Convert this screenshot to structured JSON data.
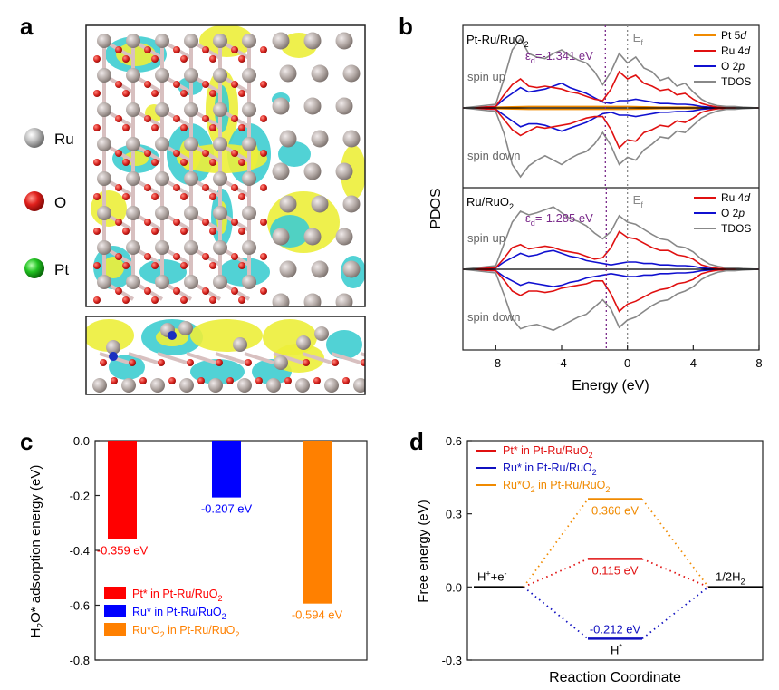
{
  "panel_letters": {
    "a": "a",
    "b": "b",
    "c": "c",
    "d": "d"
  },
  "panel_a": {
    "legend": [
      {
        "label": "Ru",
        "color": "#b5b5b5"
      },
      {
        "label": "O",
        "color": "#e0201c"
      },
      {
        "label": "Pt",
        "color": "#22c322"
      }
    ],
    "colors": {
      "bond": "#d8c0c0",
      "ru": "#b3a8a4",
      "o": "#d8231e",
      "yellow": "#ecee3a",
      "cyan": "#3ecdd0",
      "pt": "#1a2fc0"
    }
  },
  "chart_data": [
    {
      "id": "b",
      "type": "line",
      "title": "PDOS",
      "ylabel": "PDOS",
      "xlabel": "Energy (eV)",
      "xlim": [
        -10,
        8
      ],
      "xticks": [
        -8,
        -4,
        0,
        4,
        8
      ],
      "tick_labels": [
        "-8",
        "-4",
        "0",
        "4",
        "8"
      ],
      "ef_label": "E",
      "ef_sub": "f",
      "subplots": [
        {
          "name": "Pt-Ru/RuO",
          "name_sub": "2",
          "ed_label": "ε",
          "ed_sub": "d",
          "ed_value": "=-1.341 eV",
          "ed_x": -1.341,
          "spin_up": "spin up",
          "spin_down": "spin down",
          "legend": [
            {
              "label": "Pt 5",
              "italic": "d",
              "color": "#f08a00"
            },
            {
              "label": "Ru 4",
              "italic": "d",
              "color": "#e01010"
            },
            {
              "label": "O 2",
              "italic": "p",
              "color": "#1010d0"
            },
            {
              "label": "TDOS",
              "italic": "",
              "color": "#888888"
            }
          ],
          "series": [
            {
              "name": "TDOS",
              "color": "#888888",
              "x": [
                -10,
                -8,
                -7.5,
                -7,
                -6.5,
                -6,
                -5.5,
                -5,
                -4.5,
                -4,
                -3.5,
                -3,
                -2.5,
                -2,
                -1.5,
                -1,
                -0.5,
                0,
                0.5,
                1,
                1.5,
                2,
                2.5,
                3,
                3.5,
                4,
                4.5,
                5,
                5.5,
                6,
                6.5,
                7,
                8
              ],
              "up": [
                0,
                0.05,
                0.4,
                0.8,
                0.95,
                0.75,
                0.7,
                0.68,
                0.75,
                0.8,
                0.72,
                0.66,
                0.62,
                0.5,
                0.32,
                0.5,
                0.75,
                0.62,
                0.7,
                0.55,
                0.5,
                0.38,
                0.42,
                0.3,
                0.34,
                0.22,
                0.12,
                0.06,
                0.03,
                0.02,
                0.02,
                0.01,
                0
              ],
              "down": [
                0,
                0.05,
                0.35,
                0.78,
                0.95,
                0.8,
                0.72,
                0.66,
                0.72,
                0.78,
                0.7,
                0.64,
                0.6,
                0.5,
                0.34,
                0.52,
                0.78,
                0.68,
                0.72,
                0.58,
                0.5,
                0.4,
                0.42,
                0.32,
                0.34,
                0.24,
                0.14,
                0.08,
                0.04,
                0.02,
                0.02,
                0.01,
                0
              ]
            },
            {
              "name": "Ru 4d",
              "color": "#e01010",
              "x": [
                -10,
                -8,
                -7.5,
                -7,
                -6.5,
                -6,
                -5.5,
                -5,
                -4.5,
                -4,
                -3.5,
                -3,
                -2.5,
                -2,
                -1.5,
                -1,
                -0.5,
                0,
                0.5,
                1,
                1.5,
                2,
                2.5,
                3,
                3.5,
                4,
                4.5,
                5,
                5.5,
                6,
                6.5,
                7,
                8
              ],
              "up": [
                0,
                0.02,
                0.18,
                0.32,
                0.4,
                0.3,
                0.28,
                0.3,
                0.28,
                0.26,
                0.22,
                0.2,
                0.16,
                0.12,
                0.1,
                0.26,
                0.5,
                0.4,
                0.45,
                0.34,
                0.3,
                0.24,
                0.26,
                0.18,
                0.2,
                0.12,
                0.06,
                0.03,
                0.01,
                0.01,
                0.01,
                0,
                0
              ],
              "down": [
                0,
                0.02,
                0.16,
                0.3,
                0.38,
                0.32,
                0.26,
                0.28,
                0.26,
                0.24,
                0.22,
                0.18,
                0.14,
                0.12,
                0.12,
                0.3,
                0.55,
                0.44,
                0.46,
                0.34,
                0.3,
                0.24,
                0.26,
                0.18,
                0.2,
                0.14,
                0.06,
                0.03,
                0.01,
                0.01,
                0.01,
                0,
                0
              ]
            },
            {
              "name": "O 2p",
              "color": "#1010d0",
              "x": [
                -10,
                -8,
                -7.5,
                -7,
                -6.5,
                -6,
                -5.5,
                -5,
                -4.5,
                -4,
                -3.5,
                -3,
                -2.5,
                -2,
                -1.5,
                -1,
                -0.5,
                0,
                0.5,
                1,
                1.5,
                2,
                2.5,
                3,
                3.5,
                4,
                4.5,
                5,
                5.5,
                6,
                6.5,
                7,
                8
              ],
              "up": [
                0,
                0.02,
                0.12,
                0.2,
                0.28,
                0.22,
                0.24,
                0.26,
                0.3,
                0.34,
                0.28,
                0.24,
                0.2,
                0.14,
                0.08,
                0.06,
                0.1,
                0.1,
                0.12,
                0.1,
                0.08,
                0.06,
                0.06,
                0.05,
                0.05,
                0.04,
                0.02,
                0.01,
                0.01,
                0,
                0,
                0,
                0
              ],
              "down": [
                0,
                0.02,
                0.1,
                0.18,
                0.26,
                0.22,
                0.22,
                0.24,
                0.28,
                0.32,
                0.28,
                0.24,
                0.2,
                0.14,
                0.08,
                0.06,
                0.1,
                0.1,
                0.12,
                0.1,
                0.08,
                0.06,
                0.06,
                0.05,
                0.05,
                0.04,
                0.02,
                0.01,
                0.01,
                0,
                0,
                0,
                0
              ]
            },
            {
              "name": "Pt 5d",
              "color": "#f08a00",
              "x": [
                -10,
                -8,
                -6,
                -4,
                -2,
                0,
                2,
                4,
                6,
                8
              ],
              "up": [
                0,
                0.01,
                0.02,
                0.02,
                0.02,
                0.02,
                0.01,
                0.01,
                0,
                0
              ],
              "down": [
                0,
                0.01,
                0.02,
                0.02,
                0.02,
                0.02,
                0.01,
                0.01,
                0,
                0
              ]
            }
          ]
        },
        {
          "name": "Ru/RuO",
          "name_sub": "2",
          "ed_label": "ε",
          "ed_sub": "d",
          "ed_value": "=-1.285 eV",
          "ed_x": -1.285,
          "spin_up": "spin up",
          "spin_down": "spin down",
          "legend": [
            {
              "label": "Ru 4",
              "italic": "d",
              "color": "#e01010"
            },
            {
              "label": "O 2",
              "italic": "p",
              "color": "#1010d0"
            },
            {
              "label": "TDOS",
              "italic": "",
              "color": "#888888"
            }
          ],
          "series": [
            {
              "name": "TDOS",
              "color": "#888888",
              "x": [
                -10,
                -8,
                -7.5,
                -7,
                -6.5,
                -6,
                -5.5,
                -5,
                -4.5,
                -4,
                -3.5,
                -3,
                -2.5,
                -2,
                -1.5,
                -1,
                -0.5,
                0,
                0.5,
                1,
                1.5,
                2,
                2.5,
                3,
                3.5,
                4,
                4.5,
                5,
                5.5,
                6,
                6.5,
                7,
                8
              ],
              "up": [
                0,
                0.05,
                0.35,
                0.65,
                0.8,
                0.75,
                0.78,
                0.82,
                0.86,
                0.78,
                0.7,
                0.66,
                0.6,
                0.5,
                0.42,
                0.52,
                0.74,
                0.65,
                0.62,
                0.55,
                0.48,
                0.42,
                0.4,
                0.32,
                0.3,
                0.24,
                0.14,
                0.07,
                0.04,
                0.02,
                0.02,
                0.01,
                0
              ],
              "down": [
                0,
                0.05,
                0.35,
                0.68,
                0.82,
                0.78,
                0.76,
                0.8,
                0.84,
                0.78,
                0.72,
                0.66,
                0.62,
                0.52,
                0.42,
                0.55,
                0.8,
                0.7,
                0.66,
                0.58,
                0.5,
                0.44,
                0.42,
                0.34,
                0.3,
                0.24,
                0.14,
                0.08,
                0.04,
                0.02,
                0.02,
                0.01,
                0
              ]
            },
            {
              "name": "Ru 4d",
              "color": "#e01010",
              "x": [
                -10,
                -8,
                -7.5,
                -7,
                -6.5,
                -6,
                -5.5,
                -5,
                -4.5,
                -4,
                -3.5,
                -3,
                -2.5,
                -2,
                -1.5,
                -1,
                -0.5,
                0,
                0.5,
                1,
                1.5,
                2,
                2.5,
                3,
                3.5,
                4,
                4.5,
                5,
                5.5,
                6,
                6.5,
                7,
                8
              ],
              "up": [
                0,
                0.02,
                0.15,
                0.3,
                0.34,
                0.28,
                0.3,
                0.32,
                0.3,
                0.26,
                0.24,
                0.22,
                0.18,
                0.14,
                0.16,
                0.3,
                0.52,
                0.44,
                0.42,
                0.36,
                0.3,
                0.26,
                0.26,
                0.2,
                0.18,
                0.14,
                0.06,
                0.03,
                0.01,
                0.01,
                0.01,
                0,
                0
              ],
              "down": [
                0,
                0.02,
                0.15,
                0.3,
                0.36,
                0.3,
                0.3,
                0.32,
                0.3,
                0.26,
                0.24,
                0.22,
                0.2,
                0.16,
                0.16,
                0.34,
                0.58,
                0.48,
                0.44,
                0.38,
                0.32,
                0.28,
                0.26,
                0.2,
                0.18,
                0.14,
                0.06,
                0.03,
                0.01,
                0.01,
                0.01,
                0,
                0
              ]
            },
            {
              "name": "O 2p",
              "color": "#1010d0",
              "x": [
                -10,
                -8,
                -7.5,
                -7,
                -6.5,
                -6,
                -5.5,
                -5,
                -4.5,
                -4,
                -3.5,
                -3,
                -2.5,
                -2,
                -1.5,
                -1,
                -0.5,
                0,
                0.5,
                1,
                1.5,
                2,
                2.5,
                3,
                3.5,
                4,
                4.5,
                5,
                5.5,
                6,
                6.5,
                7,
                8
              ],
              "up": [
                0,
                0.02,
                0.1,
                0.16,
                0.22,
                0.18,
                0.2,
                0.24,
                0.26,
                0.22,
                0.18,
                0.16,
                0.12,
                0.1,
                0.08,
                0.06,
                0.08,
                0.1,
                0.1,
                0.08,
                0.08,
                0.06,
                0.06,
                0.05,
                0.05,
                0.04,
                0.02,
                0.01,
                0.01,
                0,
                0,
                0,
                0
              ],
              "down": [
                0,
                0.02,
                0.1,
                0.16,
                0.22,
                0.18,
                0.2,
                0.22,
                0.24,
                0.22,
                0.18,
                0.16,
                0.12,
                0.1,
                0.08,
                0.06,
                0.08,
                0.1,
                0.1,
                0.08,
                0.08,
                0.06,
                0.06,
                0.05,
                0.05,
                0.04,
                0.02,
                0.01,
                0.01,
                0,
                0,
                0,
                0
              ]
            }
          ]
        }
      ]
    },
    {
      "id": "c",
      "type": "bar",
      "ylabel": "H",
      "ylabel_sub": "2",
      "ylabel_rest": "O* adsorption energy (eV)",
      "ylim": [
        -0.8,
        0
      ],
      "yticks": [
        0,
        -0.2,
        -0.4,
        -0.6,
        -0.8
      ],
      "ytick_labels": [
        "0.0",
        "-0.2",
        "-0.4",
        "-0.6",
        "-0.8"
      ],
      "categories": [
        "Pt* in Pt-Ru/RuO2",
        "Ru* in Pt-Ru/RuO2",
        "Ru*O2 in Pt-Ru/RuO2"
      ],
      "values": [
        -0.359,
        -0.207,
        -0.594
      ],
      "value_labels": [
        "-0.359 eV",
        "-0.207 eV",
        "-0.594 eV"
      ],
      "colors": [
        "#ff0000",
        "#0000ff",
        "#ff8000"
      ],
      "legend": [
        {
          "pre": "Pt* in Pt-Ru/RuO",
          "sub": "2",
          "post": ""
        },
        {
          "pre": "Ru* in Pt-Ru/RuO",
          "sub": "2",
          "post": ""
        },
        {
          "pre": "Ru*O",
          "sub": "2",
          "post": " in Pt-Ru/RuO",
          "sub2": "2"
        }
      ]
    },
    {
      "id": "d",
      "type": "line",
      "ylabel": "Free energy (eV)",
      "xlabel": "Reaction Coordinate",
      "ylim": [
        -0.3,
        0.6
      ],
      "yticks": [
        0.6,
        0.3,
        0.0,
        -0.3
      ],
      "ytick_labels": [
        "0.6",
        "0.3",
        "0.0",
        "-0.3"
      ],
      "states": {
        "initial": "H",
        "initial_sup": "+",
        "initial_mid": "+e",
        "initial_sup2": "-",
        "final": "1/2H",
        "final_sub": "2",
        "intermediate": "H",
        "intermediate_sup": "*"
      },
      "series": [
        {
          "name": "Pt* in Pt-Ru/RuO2",
          "color": "#e01010",
          "values": [
            0,
            0.115,
            0
          ],
          "label": "0.115 eV"
        },
        {
          "name": "Ru* in Pt-Ru/RuO2",
          "color": "#1010c0",
          "values": [
            0,
            -0.212,
            0
          ],
          "label": "-0.212 eV"
        },
        {
          "name": "Ru*O2 in Pt-Ru/RuO2",
          "color": "#f08a00",
          "values": [
            0,
            0.36,
            0
          ],
          "label": "0.360 eV"
        }
      ],
      "legend": [
        {
          "pre": "Pt* in Pt-Ru/RuO",
          "sub": "2"
        },
        {
          "pre": "Ru* in Pt-Ru/RuO",
          "sub": "2"
        },
        {
          "pre": "Ru*O",
          "sub": "2",
          "post": " in Pt-Ru/RuO",
          "sub2": "2"
        }
      ]
    }
  ]
}
